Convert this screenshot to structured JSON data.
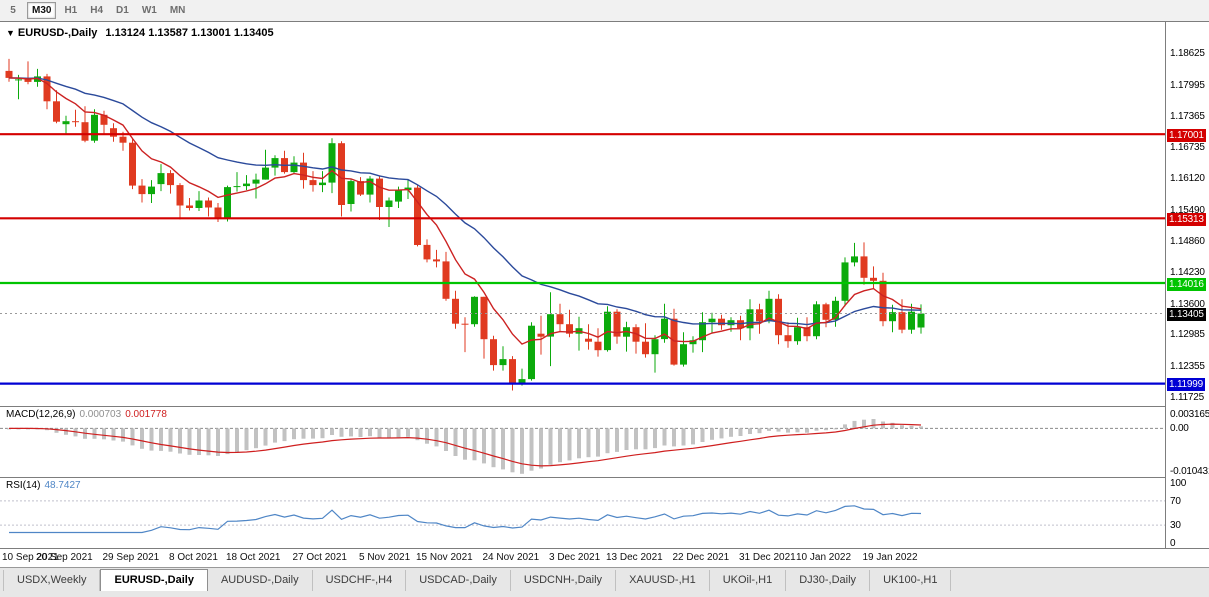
{
  "toolbar": {
    "timeframes": [
      {
        "label": "5",
        "active": false
      },
      {
        "label": "M30",
        "active": true
      },
      {
        "label": "H1",
        "active": false
      },
      {
        "label": "H4",
        "active": false
      },
      {
        "label": "D1",
        "active": false
      },
      {
        "label": "W1",
        "active": false
      },
      {
        "label": "MN",
        "active": false
      }
    ]
  },
  "chart": {
    "title": "EURUSD-,Daily",
    "ohlc_display": "1.13124 1.13587 1.13001 1.13405",
    "hlines": [
      {
        "price": 1.17001,
        "label": "1.17001",
        "color": "#d40000"
      },
      {
        "price": 1.15313,
        "label": "1.15313",
        "color": "#d40000"
      },
      {
        "price": 1.14016,
        "label": "1.14016",
        "color": "#00c400"
      },
      {
        "price": 1.11999,
        "label": "1.11999",
        "color": "#0000d4"
      }
    ],
    "current_price": {
      "price": 1.13405,
      "label": "1.13405",
      "bg": "#000000"
    },
    "colors": {
      "up": "#0caa0c",
      "down": "#e03a20",
      "ma_fast": "#cc2222",
      "ma_slow": "#2b4a9b",
      "macd_hist": "#c2c2c2",
      "macd_signal": "#cf1f1f",
      "rsi_line": "#4f86c6"
    }
  },
  "indicators": {
    "macd": {
      "name": "MACD(12,26,9)",
      "value_main": "0.000703",
      "value_signal": "0.001778",
      "axis_labels": [
        "0.003165",
        "0.00",
        "-0.010431"
      ]
    },
    "rsi": {
      "name": "RSI(14)",
      "value": "48.7427",
      "axis_labels": [
        "100",
        "70",
        "30",
        "0"
      ],
      "levels": [
        70,
        30
      ]
    }
  },
  "tabs": [
    {
      "label": "USDX,Weekly",
      "active": false
    },
    {
      "label": "EURUSD-,Daily",
      "active": true
    },
    {
      "label": "AUDUSD-,Daily",
      "active": false
    },
    {
      "label": "USDCHF-,H4",
      "active": false
    },
    {
      "label": "USDCAD-,Daily",
      "active": false
    },
    {
      "label": "USDCNH-,Daily",
      "active": false
    },
    {
      "label": "XAUUSD-,H1",
      "active": false
    },
    {
      "label": "UKOil-,H1",
      "active": false
    },
    {
      "label": "DJ30-,Daily",
      "active": false
    },
    {
      "label": "UK100-,H1",
      "active": false
    }
  ],
  "chart_data": {
    "type": "candlestick",
    "symbol": "EURUSD-",
    "timeframe": "Daily",
    "ylim": [
      1.1155,
      1.1925
    ],
    "y_axis_labels": [
      "1.18625",
      "1.17995",
      "1.17365",
      "1.16735",
      "1.16120",
      "1.15490",
      "1.14860",
      "1.14230",
      "1.13600",
      "1.12985",
      "1.12355",
      "1.11725"
    ],
    "x_axis_labels": [
      {
        "text": "10 Sep 2021",
        "index": 0
      },
      {
        "text": "20 Sep 2021",
        "index": 6
      },
      {
        "text": "29 Sep 2021",
        "index": 13
      },
      {
        "text": "8 Oct 2021",
        "index": 20
      },
      {
        "text": "18 Oct 2021",
        "index": 26
      },
      {
        "text": "27 Oct 2021",
        "index": 33
      },
      {
        "text": "5 Nov 2021",
        "index": 40
      },
      {
        "text": "15 Nov 2021",
        "index": 46
      },
      {
        "text": "24 Nov 2021",
        "index": 53
      },
      {
        "text": "3 Dec 2021",
        "index": 60
      },
      {
        "text": "13 Dec 2021",
        "index": 66
      },
      {
        "text": "22 Dec 2021",
        "index": 73
      },
      {
        "text": "31 Dec 2021",
        "index": 80
      },
      {
        "text": "10 Jan 2022",
        "index": 86
      },
      {
        "text": "19 Jan 2022",
        "index": 93
      }
    ],
    "open": [
      1.1827,
      1.1809,
      1.181,
      1.1805,
      1.1816,
      1.1766,
      1.172,
      1.1726,
      1.1724,
      1.1687,
      1.1739,
      1.1712,
      1.1695,
      1.1683,
      1.1597,
      1.158,
      1.16,
      1.1622,
      1.1598,
      1.1557,
      1.1552,
      1.1567,
      1.1553,
      1.1531,
      1.1594,
      1.1596,
      1.1601,
      1.1609,
      1.1633,
      1.1652,
      1.1624,
      1.1643,
      1.1608,
      1.1598,
      1.1603,
      1.1682,
      1.156,
      1.1606,
      1.1579,
      1.1611,
      1.1554,
      1.1565,
      1.1588,
      1.1593,
      1.1478,
      1.1449,
      1.1445,
      1.137,
      1.132,
      1.1319,
      1.1374,
      1.1289,
      1.1237,
      1.1249,
      1.1199,
      1.1209,
      1.13,
      1.1294,
      1.1339,
      1.1319,
      1.13,
      1.129,
      1.1284,
      1.1267,
      1.1344,
      1.1294,
      1.1313,
      1.1284,
      1.1259,
      1.1289,
      1.133,
      1.1238,
      1.1279,
      1.1287,
      1.1323,
      1.133,
      1.1317,
      1.1327,
      1.1311,
      1.1349,
      1.1325,
      1.137,
      1.1297,
      1.1285,
      1.1313,
      1.1295,
      1.1359,
      1.1328,
      1.1366,
      1.1443,
      1.1455,
      1.1412,
      1.1406,
      1.1325,
      1.1343,
      1.1308,
      1.13124
    ],
    "high": [
      1.1851,
      1.1819,
      1.1846,
      1.1831,
      1.1821,
      1.1788,
      1.1737,
      1.1749,
      1.1756,
      1.175,
      1.1747,
      1.1722,
      1.1705,
      1.169,
      1.161,
      1.1608,
      1.164,
      1.1628,
      1.1602,
      1.1572,
      1.1586,
      1.1573,
      1.1562,
      1.1597,
      1.1624,
      1.1618,
      1.1621,
      1.1669,
      1.1658,
      1.1667,
      1.1656,
      1.1663,
      1.1626,
      1.1626,
      1.1692,
      1.1686,
      1.1609,
      1.1614,
      1.1616,
      1.1617,
      1.1573,
      1.1595,
      1.1609,
      1.1598,
      1.1489,
      1.1468,
      1.1464,
      1.1386,
      1.1333,
      1.1375,
      1.1374,
      1.1296,
      1.1275,
      1.1255,
      1.123,
      1.1323,
      1.1336,
      1.1383,
      1.136,
      1.1348,
      1.1334,
      1.1319,
      1.1311,
      1.1355,
      1.1349,
      1.1324,
      1.1319,
      1.1321,
      1.1297,
      1.136,
      1.135,
      1.1303,
      1.1295,
      1.1343,
      1.1342,
      1.1338,
      1.1333,
      1.1336,
      1.1369,
      1.136,
      1.1386,
      1.1379,
      1.1323,
      1.1332,
      1.1333,
      1.1365,
      1.1362,
      1.1374,
      1.1453,
      1.1482,
      1.1483,
      1.1435,
      1.1422,
      1.1358,
      1.1369,
      1.136,
      1.13587
    ],
    "low": [
      1.1805,
      1.177,
      1.18,
      1.1795,
      1.175,
      1.1722,
      1.17,
      1.1715,
      1.1684,
      1.1683,
      1.1701,
      1.1685,
      1.1667,
      1.159,
      1.1563,
      1.1562,
      1.1586,
      1.1581,
      1.1529,
      1.1547,
      1.1546,
      1.1535,
      1.1524,
      1.1525,
      1.1585,
      1.1588,
      1.1571,
      1.1609,
      1.1617,
      1.1621,
      1.162,
      1.1591,
      1.1585,
      1.1584,
      1.1582,
      1.1535,
      1.1545,
      1.1576,
      1.1563,
      1.1528,
      1.1514,
      1.1552,
      1.157,
      1.1475,
      1.1443,
      1.1433,
      1.1366,
      1.131,
      1.1263,
      1.1314,
      1.125,
      1.1226,
      1.1226,
      1.1186,
      1.1196,
      1.1206,
      1.1258,
      1.1235,
      1.1305,
      1.1293,
      1.1266,
      1.1268,
      1.1254,
      1.1264,
      1.128,
      1.1264,
      1.126,
      1.1252,
      1.1222,
      1.1282,
      1.1236,
      1.1234,
      1.1262,
      1.1263,
      1.1301,
      1.1308,
      1.1304,
      1.1287,
      1.1287,
      1.13,
      1.1321,
      1.1279,
      1.1272,
      1.1278,
      1.1285,
      1.1289,
      1.1313,
      1.1314,
      1.1355,
      1.1435,
      1.1398,
      1.1391,
      1.1315,
      1.1303,
      1.1301,
      1.13,
      1.13001
    ],
    "close": [
      1.1813,
      1.181,
      1.1805,
      1.1816,
      1.1766,
      1.1725,
      1.1726,
      1.1724,
      1.1687,
      1.1739,
      1.1719,
      1.1695,
      1.1683,
      1.1597,
      1.158,
      1.1595,
      1.1622,
      1.1598,
      1.1557,
      1.1552,
      1.1567,
      1.1553,
      1.1531,
      1.1594,
      1.1596,
      1.1601,
      1.1609,
      1.1633,
      1.1652,
      1.1624,
      1.1643,
      1.1608,
      1.1598,
      1.1603,
      1.1682,
      1.1558,
      1.1606,
      1.1579,
      1.1611,
      1.1554,
      1.1567,
      1.1588,
      1.1593,
      1.1478,
      1.1449,
      1.1445,
      1.137,
      1.132,
      1.1319,
      1.1374,
      1.1289,
      1.1237,
      1.1249,
      1.1199,
      1.1209,
      1.1316,
      1.1294,
      1.1339,
      1.1319,
      1.13,
      1.1311,
      1.1284,
      1.1267,
      1.1344,
      1.1294,
      1.1313,
      1.1284,
      1.1259,
      1.1289,
      1.133,
      1.1238,
      1.1279,
      1.1287,
      1.1323,
      1.133,
      1.1317,
      1.1327,
      1.1311,
      1.1349,
      1.1325,
      1.137,
      1.1297,
      1.1285,
      1.1313,
      1.1295,
      1.1359,
      1.1328,
      1.1366,
      1.1443,
      1.1455,
      1.1412,
      1.1406,
      1.1325,
      1.1343,
      1.1308,
      1.1344,
      1.13405
    ]
  }
}
